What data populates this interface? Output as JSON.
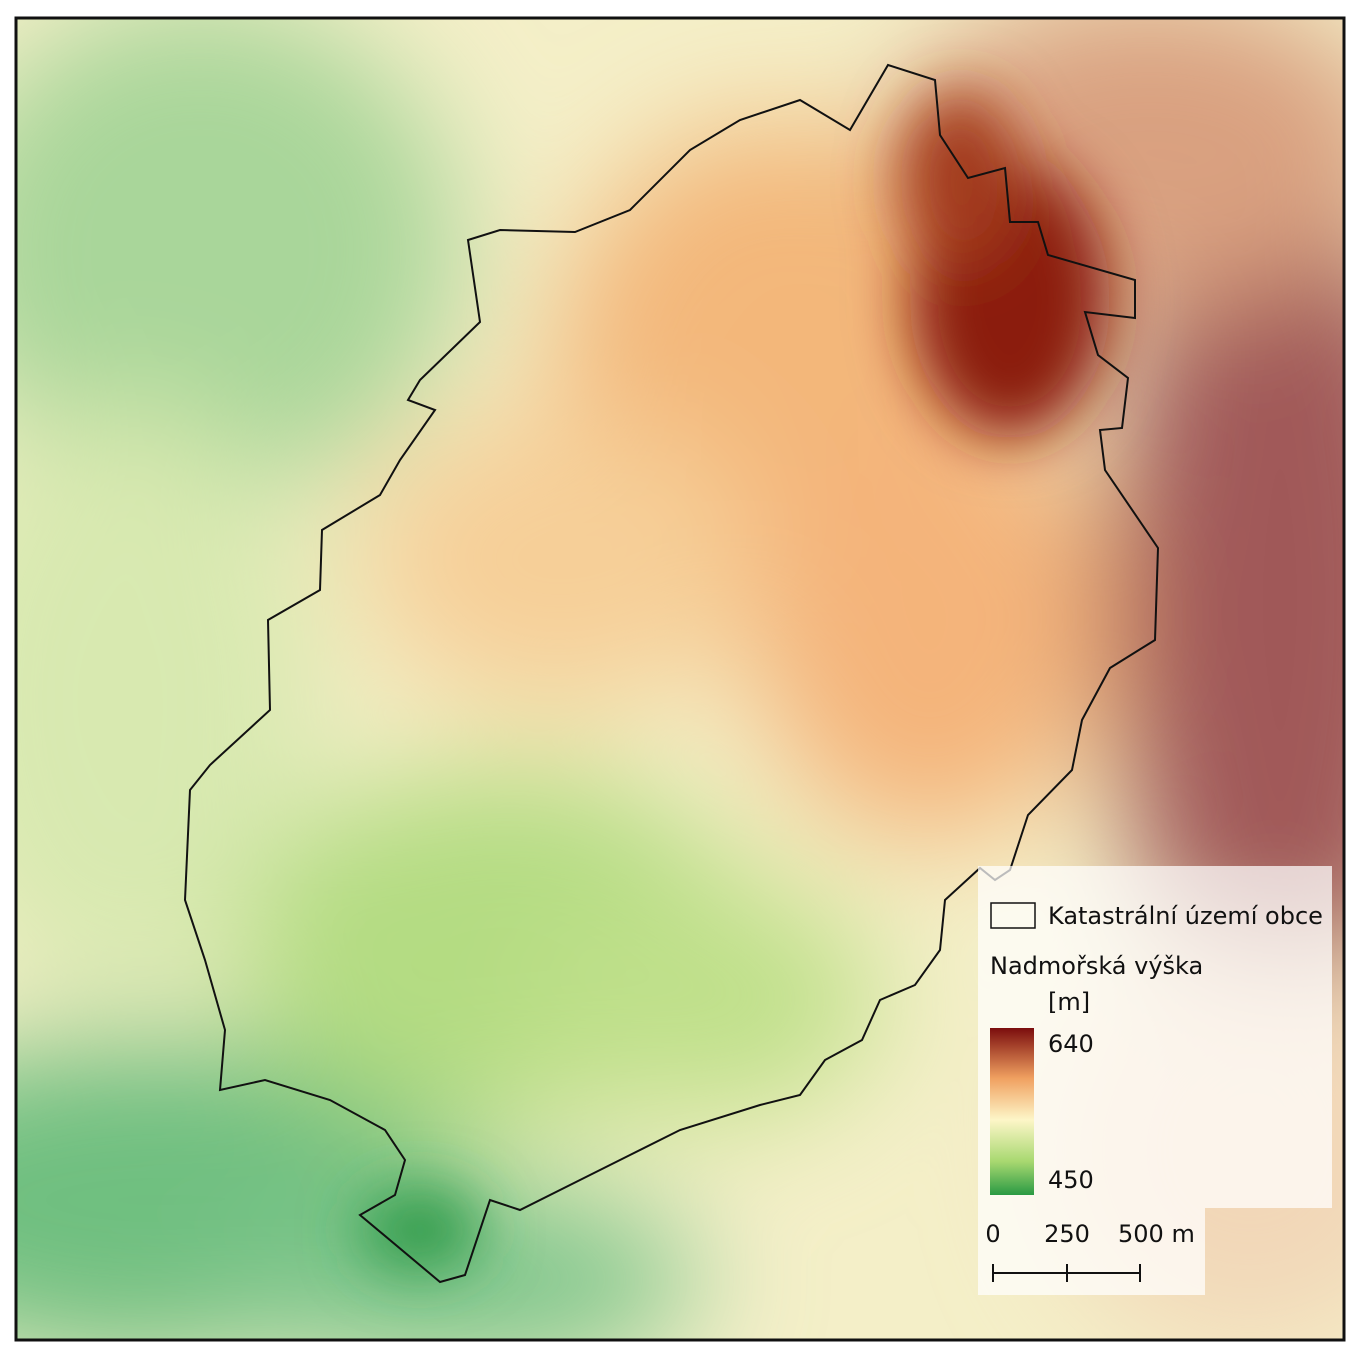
{
  "legend": {
    "boundary_label": "Katastrální území obce",
    "title": "Nadmořská výška",
    "unit": "[m]",
    "max_label": "640",
    "min_label": "450"
  },
  "scale_bar": {
    "labels": [
      "0",
      "250",
      "500 m"
    ]
  }
}
